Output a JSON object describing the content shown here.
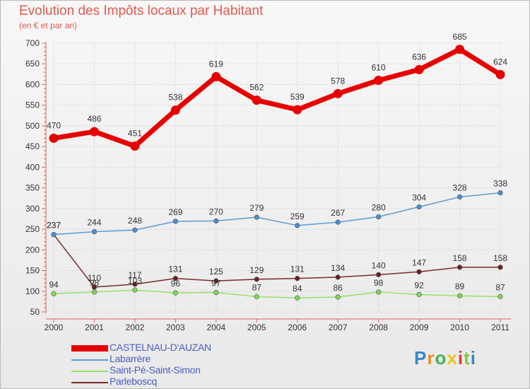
{
  "logo": {
    "text": "Proxiti"
  },
  "chart_data": {
    "type": "line",
    "title": "Evolution des Impôts locaux par Habitant",
    "subtitle": "(en € et par an)",
    "xlabel": "",
    "ylabel": "",
    "categories": [
      "2000",
      "2001",
      "2002",
      "2003",
      "2004",
      "2005",
      "2006",
      "2007",
      "2008",
      "2009",
      "2010",
      "2011"
    ],
    "ylim": [
      50,
      700
    ],
    "yticks": [
      50,
      100,
      150,
      200,
      250,
      300,
      350,
      400,
      450,
      500,
      550,
      600,
      650,
      700
    ],
    "grid": true,
    "series": [
      {
        "name": "CASTELNAU-D'AUZAN",
        "color": "#e60000",
        "marker": "#e60000",
        "values": [
          470,
          486,
          451,
          538,
          619,
          562,
          539,
          578,
          610,
          636,
          685,
          624
        ]
      },
      {
        "name": "Labarrère",
        "color": "#5b9bd5",
        "marker": "#4a8fd0",
        "values": [
          237,
          244,
          248,
          269,
          270,
          279,
          259,
          267,
          280,
          304,
          328,
          338
        ]
      },
      {
        "name": "Saint-Pé-Saint-Simon",
        "color": "#99e066",
        "marker": "#7ed957",
        "values": [
          94,
          98,
          103,
          96,
          97,
          87,
          84,
          86,
          98,
          92,
          89,
          87
        ]
      },
      {
        "name": "Parleboscq",
        "color": "#7a2a2a",
        "marker": "#6b1f1f",
        "values": [
          237,
          110,
          117,
          131,
          125,
          129,
          131,
          134,
          140,
          147,
          158,
          158
        ]
      }
    ]
  }
}
